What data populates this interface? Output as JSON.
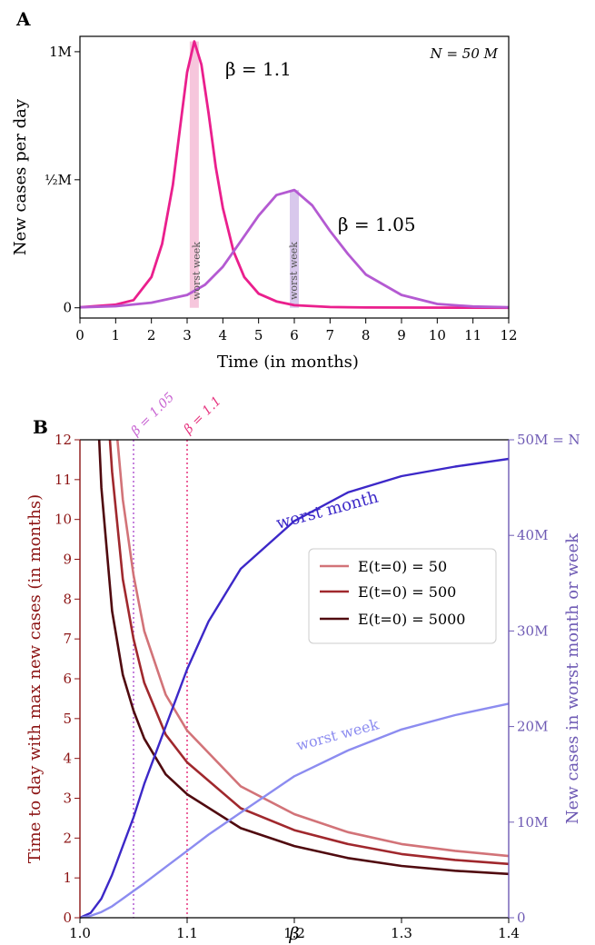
{
  "colors": {
    "beta_1_1": "#ea1f8d",
    "beta_1_05": "#b45ad2",
    "beta_1_05_label": "#dc78dc",
    "e50": "#d27378",
    "e500": "#a0282d",
    "e5000": "#500a0f",
    "worst_month": "#3c28c8",
    "worst_week": "#8c8cf0",
    "left_axis": "#8c1414",
    "right_axis": "#6e5ab4",
    "vline_1_05": "#b45ad2",
    "vline_1_1": "#e6327d"
  },
  "panelA": {
    "letter": "A",
    "ylabel": "New cases per day",
    "xlabel": "Time (in months)",
    "annotation": "N = 50 M",
    "worst_week_label": "worst week",
    "curve_labels": {
      "b11": "β = 1.1",
      "b105": "β = 1.05"
    }
  },
  "panelB": {
    "letter": "B",
    "ylabel_left": "Time to day with max new cases (in months)",
    "ylabel_right": "New cases in worst month or week",
    "xlabel": "β",
    "top_right_label": "50M = N",
    "vline_labels": {
      "b105": "β = 1.05",
      "b11": "β = 1.1"
    },
    "curve_labels": {
      "worst_month": "worst month",
      "worst_week": "worst week"
    },
    "legend": [
      "E(t=0) = 50",
      "E(t=0) = 500",
      "E(t=0) = 5000"
    ]
  },
  "chart_data": [
    {
      "type": "line",
      "xlabel": "Time (in months)",
      "ylabel": "New cases per day",
      "xlim": [
        0,
        12
      ],
      "ylim": [
        -0.04,
        1.06
      ],
      "xticks": [
        "0",
        "1",
        "2",
        "3",
        "4",
        "5",
        "6",
        "7",
        "8",
        "9",
        "10",
        "11",
        "12"
      ],
      "yticks": [
        {
          "value": 0,
          "label": "0"
        },
        {
          "value": 0.5,
          "label": "½M"
        },
        {
          "value": 1,
          "label": "1M"
        }
      ],
      "series": [
        {
          "name": "β = 1.1",
          "x": [
            0,
            1,
            1.5,
            2,
            2.3,
            2.6,
            2.8,
            3.0,
            3.2,
            3.4,
            3.6,
            3.8,
            4.0,
            4.3,
            4.6,
            5.0,
            5.5,
            6,
            7,
            8,
            12
          ],
          "y": [
            0.002,
            0.012,
            0.03,
            0.12,
            0.25,
            0.48,
            0.7,
            0.92,
            1.04,
            0.95,
            0.76,
            0.55,
            0.39,
            0.22,
            0.12,
            0.055,
            0.025,
            0.01,
            0.003,
            0.001,
            0.0
          ]
        },
        {
          "name": "β = 1.05",
          "x": [
            0,
            1,
            2,
            3,
            3.5,
            4,
            4.5,
            5,
            5.5,
            6,
            6.5,
            7,
            7.5,
            8,
            9,
            10,
            11,
            12
          ],
          "y": [
            0.002,
            0.006,
            0.02,
            0.05,
            0.09,
            0.16,
            0.26,
            0.36,
            0.44,
            0.46,
            0.4,
            0.3,
            0.21,
            0.13,
            0.05,
            0.015,
            0.005,
            0.002
          ]
        }
      ],
      "highlights": [
        {
          "x": 3.2,
          "label": "worst week"
        },
        {
          "x": 6.0,
          "label": "worst week"
        }
      ]
    },
    {
      "type": "line",
      "xlabel": "β",
      "ylabel": "Time to day with max new cases (in months)",
      "ylabel_right": "New cases in worst month or week",
      "xlim": [
        1.0,
        1.4
      ],
      "ylim_left": [
        0,
        12
      ],
      "ylim_right": [
        0,
        50
      ],
      "xticks": [
        "1.0",
        "1.1",
        "1.2",
        "1.3",
        "1.4"
      ],
      "yticks_left": [
        "0",
        "1",
        "2",
        "3",
        "4",
        "5",
        "6",
        "7",
        "8",
        "9",
        "10",
        "11",
        "12"
      ],
      "yticks_right": [
        "0",
        "10M",
        "20M",
        "30M",
        "40M",
        "50M = N"
      ],
      "vlines": [
        1.05,
        1.1
      ],
      "series_left": [
        {
          "name": "E(t=0) = 50",
          "x": [
            1.035,
            1.04,
            1.05,
            1.06,
            1.08,
            1.1,
            1.15,
            1.2,
            1.25,
            1.3,
            1.35,
            1.4
          ],
          "y": [
            12.0,
            10.5,
            8.6,
            7.2,
            5.6,
            4.7,
            3.3,
            2.6,
            2.15,
            1.85,
            1.68,
            1.55
          ]
        },
        {
          "name": "E(t=0) = 500",
          "x": [
            1.028,
            1.03,
            1.04,
            1.05,
            1.06,
            1.08,
            1.1,
            1.15,
            1.2,
            1.25,
            1.3,
            1.35,
            1.4
          ],
          "y": [
            12.0,
            11.2,
            8.5,
            7.0,
            5.9,
            4.6,
            3.9,
            2.75,
            2.2,
            1.85,
            1.6,
            1.45,
            1.35
          ]
        },
        {
          "name": "E(t=0) = 5000",
          "x": [
            1.018,
            1.02,
            1.03,
            1.04,
            1.05,
            1.06,
            1.08,
            1.1,
            1.15,
            1.2,
            1.25,
            1.3,
            1.35,
            1.4
          ],
          "y": [
            12.0,
            10.8,
            7.7,
            6.1,
            5.2,
            4.5,
            3.6,
            3.1,
            2.25,
            1.8,
            1.5,
            1.3,
            1.18,
            1.1
          ]
        }
      ],
      "series_right": [
        {
          "name": "worst month",
          "x": [
            1.0,
            1.01,
            1.02,
            1.03,
            1.04,
            1.05,
            1.06,
            1.08,
            1.1,
            1.12,
            1.15,
            1.2,
            1.25,
            1.3,
            1.35,
            1.4
          ],
          "y": [
            0,
            0.5,
            2.0,
            4.5,
            7.5,
            10.5,
            14.0,
            20.0,
            26.0,
            31.0,
            36.5,
            41.5,
            44.5,
            46.2,
            47.2,
            48.0
          ]
        },
        {
          "name": "worst week",
          "x": [
            1.0,
            1.01,
            1.02,
            1.03,
            1.04,
            1.05,
            1.06,
            1.08,
            1.1,
            1.12,
            1.15,
            1.2,
            1.25,
            1.3,
            1.35,
            1.4
          ],
          "y": [
            0,
            0.2,
            0.6,
            1.2,
            2.0,
            2.8,
            3.6,
            5.3,
            7.0,
            8.7,
            11.0,
            14.8,
            17.5,
            19.7,
            21.2,
            22.4
          ]
        }
      ]
    }
  ]
}
